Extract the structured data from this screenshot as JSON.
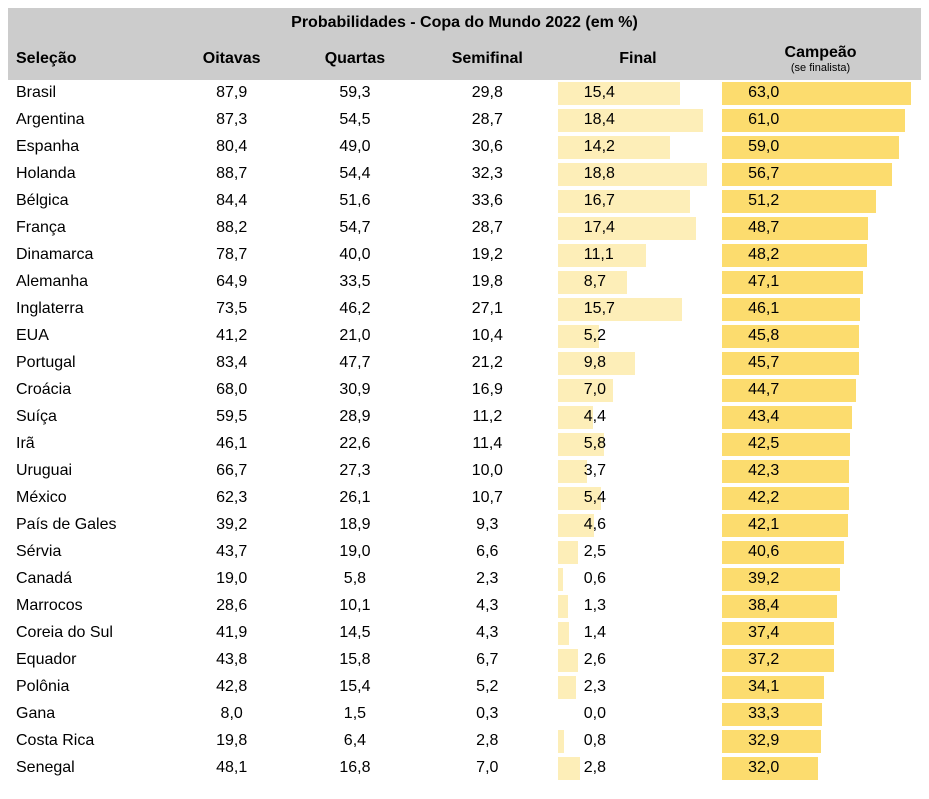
{
  "title": "Probabilidades - Copa do Mundo 2022 (em %)",
  "colors": {
    "header_bg": "#cccccc",
    "text": "#000000",
    "bar_final": "#fdeeb8",
    "bar_campeao": "#fcdc6e",
    "background": "#ffffff"
  },
  "columns": {
    "selecao": "Seleção",
    "oitavas": "Oitavas",
    "quartas": "Quartas",
    "semifinal": "Semifinal",
    "final": "Final",
    "campeao": "Campeão",
    "campeao_sub": "(se finalista)"
  },
  "bar_columns": {
    "final": {
      "max": 20,
      "color": "#fdeeb8"
    },
    "campeao": {
      "max": 65,
      "color": "#fcdc6e"
    }
  },
  "decimal_separator": ",",
  "rows": [
    {
      "team": "Brasil",
      "oitavas": 87.9,
      "quartas": 59.3,
      "semifinal": 29.8,
      "final": 15.4,
      "campeao": 63.0
    },
    {
      "team": "Argentina",
      "oitavas": 87.3,
      "quartas": 54.5,
      "semifinal": 28.7,
      "final": 18.4,
      "campeao": 61.0
    },
    {
      "team": "Espanha",
      "oitavas": 80.4,
      "quartas": 49.0,
      "semifinal": 30.6,
      "final": 14.2,
      "campeao": 59.0
    },
    {
      "team": "Holanda",
      "oitavas": 88.7,
      "quartas": 54.4,
      "semifinal": 32.3,
      "final": 18.8,
      "campeao": 56.7
    },
    {
      "team": "Bélgica",
      "oitavas": 84.4,
      "quartas": 51.6,
      "semifinal": 33.6,
      "final": 16.7,
      "campeao": 51.2
    },
    {
      "team": "França",
      "oitavas": 88.2,
      "quartas": 54.7,
      "semifinal": 28.7,
      "final": 17.4,
      "campeao": 48.7
    },
    {
      "team": "Dinamarca",
      "oitavas": 78.7,
      "quartas": 40.0,
      "semifinal": 19.2,
      "final": 11.1,
      "campeao": 48.2
    },
    {
      "team": "Alemanha",
      "oitavas": 64.9,
      "quartas": 33.5,
      "semifinal": 19.8,
      "final": 8.7,
      "campeao": 47.1
    },
    {
      "team": "Inglaterra",
      "oitavas": 73.5,
      "quartas": 46.2,
      "semifinal": 27.1,
      "final": 15.7,
      "campeao": 46.1
    },
    {
      "team": "EUA",
      "oitavas": 41.2,
      "quartas": 21.0,
      "semifinal": 10.4,
      "final": 5.2,
      "campeao": 45.8
    },
    {
      "team": "Portugal",
      "oitavas": 83.4,
      "quartas": 47.7,
      "semifinal": 21.2,
      "final": 9.8,
      "campeao": 45.7
    },
    {
      "team": "Croácia",
      "oitavas": 68.0,
      "quartas": 30.9,
      "semifinal": 16.9,
      "final": 7.0,
      "campeao": 44.7
    },
    {
      "team": "Suíça",
      "oitavas": 59.5,
      "quartas": 28.9,
      "semifinal": 11.2,
      "final": 4.4,
      "campeao": 43.4
    },
    {
      "team": "Irã",
      "oitavas": 46.1,
      "quartas": 22.6,
      "semifinal": 11.4,
      "final": 5.8,
      "campeao": 42.5
    },
    {
      "team": "Uruguai",
      "oitavas": 66.7,
      "quartas": 27.3,
      "semifinal": 10.0,
      "final": 3.7,
      "campeao": 42.3
    },
    {
      "team": "México",
      "oitavas": 62.3,
      "quartas": 26.1,
      "semifinal": 10.7,
      "final": 5.4,
      "campeao": 42.2
    },
    {
      "team": "País de Gales",
      "oitavas": 39.2,
      "quartas": 18.9,
      "semifinal": 9.3,
      "final": 4.6,
      "campeao": 42.1
    },
    {
      "team": "Sérvia",
      "oitavas": 43.7,
      "quartas": 19.0,
      "semifinal": 6.6,
      "final": 2.5,
      "campeao": 40.6
    },
    {
      "team": "Canadá",
      "oitavas": 19.0,
      "quartas": 5.8,
      "semifinal": 2.3,
      "final": 0.6,
      "campeao": 39.2
    },
    {
      "team": "Marrocos",
      "oitavas": 28.6,
      "quartas": 10.1,
      "semifinal": 4.3,
      "final": 1.3,
      "campeao": 38.4
    },
    {
      "team": "Coreia do Sul",
      "oitavas": 41.9,
      "quartas": 14.5,
      "semifinal": 4.3,
      "final": 1.4,
      "campeao": 37.4
    },
    {
      "team": "Equador",
      "oitavas": 43.8,
      "quartas": 15.8,
      "semifinal": 6.7,
      "final": 2.6,
      "campeao": 37.2
    },
    {
      "team": "Polônia",
      "oitavas": 42.8,
      "quartas": 15.4,
      "semifinal": 5.2,
      "final": 2.3,
      "campeao": 34.1
    },
    {
      "team": "Gana",
      "oitavas": 8.0,
      "quartas": 1.5,
      "semifinal": 0.3,
      "final": 0.0,
      "campeao": 33.3
    },
    {
      "team": "Costa Rica",
      "oitavas": 19.8,
      "quartas": 6.4,
      "semifinal": 2.8,
      "final": 0.8,
      "campeao": 32.9
    },
    {
      "team": "Senegal",
      "oitavas": 48.1,
      "quartas": 16.8,
      "semifinal": 7.0,
      "final": 2.8,
      "campeao": 32.0
    }
  ]
}
